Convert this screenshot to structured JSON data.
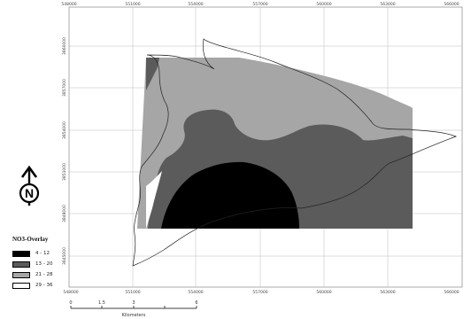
{
  "map": {
    "x_ticks": [
      "548000",
      "551000",
      "554000",
      "557000",
      "560000",
      "563000",
      "566000"
    ],
    "y_ticks": [
      "3860000",
      "3857000",
      "3854000",
      "3851000",
      "3848000",
      "3845000"
    ]
  },
  "north_arrow": {
    "letter": "N"
  },
  "legend": {
    "title": "NO3-Overlay",
    "items": [
      {
        "label": "4 - 12",
        "color": "#000000"
      },
      {
        "label": "13 - 20",
        "color": "#5b5b5b"
      },
      {
        "label": "21 - 28",
        "color": "#a6a6a6"
      },
      {
        "label": "29 - 36",
        "color": "#ffffff"
      }
    ]
  },
  "scale_bar": {
    "ticks": [
      "0",
      "1.5",
      "3",
      "",
      "6"
    ],
    "unit": "Kilometers"
  }
}
